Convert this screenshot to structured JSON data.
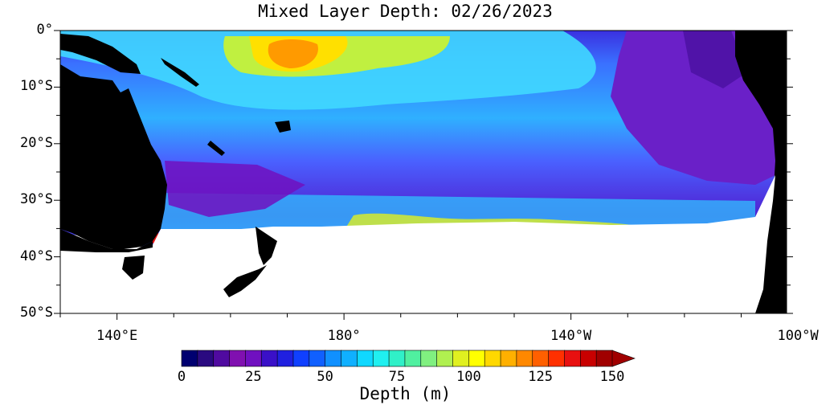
{
  "title": "Mixed Layer Depth: 02/26/2023",
  "map": {
    "lat_range": [
      -50,
      0
    ],
    "lon_range_deg_east": [
      130,
      258
    ],
    "y_ticks": [
      {
        "label": "0°",
        "lat": 0
      },
      {
        "label": "10°S",
        "lat": -10
      },
      {
        "label": "20°S",
        "lat": -20
      },
      {
        "label": "30°S",
        "lat": -30
      },
      {
        "label": "40°S",
        "lat": -40
      },
      {
        "label": "50°S",
        "lat": -50
      }
    ],
    "x_ticks": [
      {
        "label": "140°E",
        "lon": 140
      },
      {
        "label": "180°",
        "lon": 180
      },
      {
        "label": "140°W",
        "lon": 220
      },
      {
        "label": "100°W",
        "lon": 260
      }
    ],
    "land_color": "#000000",
    "nodata_color": "#ffffff"
  },
  "colorbar": {
    "title": "Depth (m)",
    "min": 0,
    "max": 150,
    "step": 5,
    "extend": "max",
    "labels": [
      "0",
      "25",
      "50",
      "75",
      "100",
      "125",
      "150"
    ],
    "colors": [
      "#000070",
      "#2a0a80",
      "#500aa0",
      "#8010b0",
      "#7010c0",
      "#3a10c8",
      "#2020e0",
      "#1040ff",
      "#1060ff",
      "#1090ff",
      "#10b0ff",
      "#10d8ff",
      "#20f0f0",
      "#30f0c8",
      "#50f0a0",
      "#80f080",
      "#b0f050",
      "#e0f020",
      "#ffff00",
      "#ffd800",
      "#ffb000",
      "#ff8800",
      "#ff6000",
      "#ff3000",
      "#e81010",
      "#c80000",
      "#a00000"
    ]
  }
}
